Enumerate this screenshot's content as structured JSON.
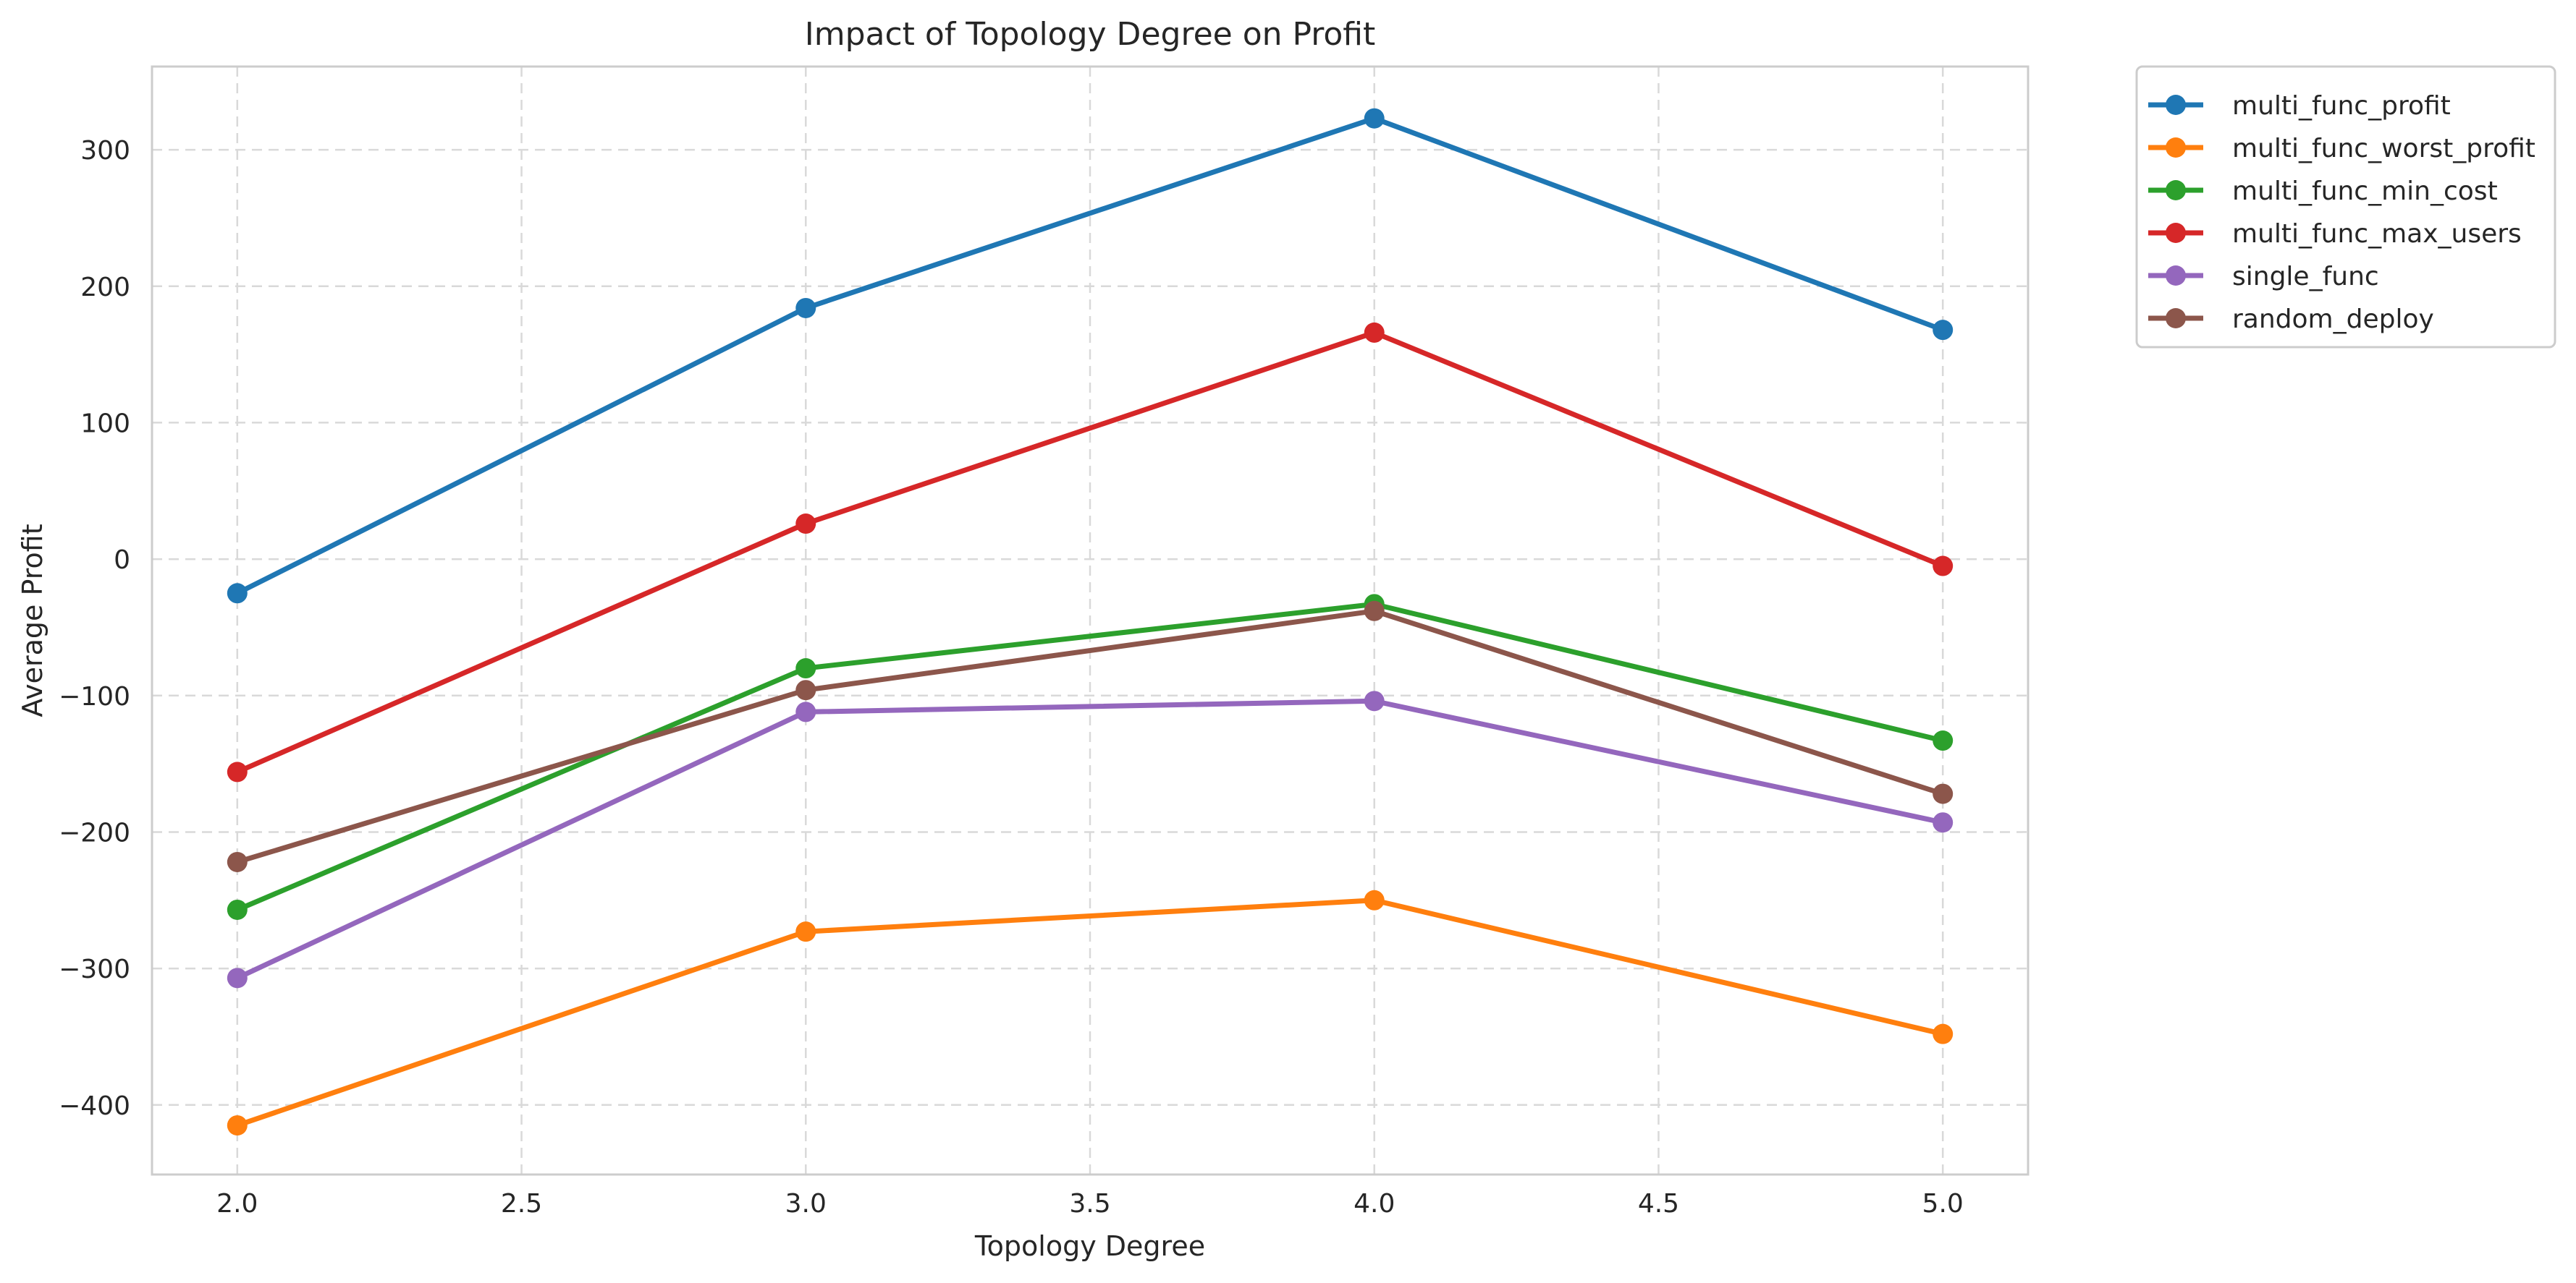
{
  "chart_data": {
    "type": "line",
    "title": "Impact of Topology Degree on Profit",
    "xlabel": "Topology Degree",
    "ylabel": "Average Profit",
    "x": [
      2.0,
      3.0,
      4.0,
      5.0
    ],
    "xlim": [
      1.85,
      5.15
    ],
    "ylim": [
      -451,
      361
    ],
    "xticks": [
      2.0,
      2.5,
      3.0,
      3.5,
      4.0,
      4.5,
      5.0
    ],
    "xtick_labels": [
      "2.0",
      "2.5",
      "3.0",
      "3.5",
      "4.0",
      "4.5",
      "5.0"
    ],
    "yticks": [
      -400,
      -300,
      -200,
      -100,
      0,
      100,
      200,
      300
    ],
    "ytick_labels": [
      "−400",
      "−300",
      "−200",
      "−100",
      "0",
      "100",
      "200",
      "300"
    ],
    "grid": true,
    "legend_position": "outside right, top",
    "series": [
      {
        "name": "multi_func_profit",
        "color": "#1f77b4",
        "values": [
          -25,
          184,
          323,
          168
        ]
      },
      {
        "name": "multi_func_worst_profit",
        "color": "#ff7f0e",
        "values": [
          -415,
          -273,
          -250,
          -348
        ]
      },
      {
        "name": "multi_func_min_cost",
        "color": "#2ca02c",
        "values": [
          -257,
          -80,
          -33,
          -133
        ]
      },
      {
        "name": "multi_func_max_users",
        "color": "#d62728",
        "values": [
          -156,
          26,
          166,
          -5
        ]
      },
      {
        "name": "single_func",
        "color": "#9467bd",
        "values": [
          -307,
          -112,
          -104,
          -193
        ]
      },
      {
        "name": "random_deploy",
        "color": "#8c564b",
        "values": [
          -222,
          -96,
          -38,
          -172
        ]
      }
    ]
  }
}
